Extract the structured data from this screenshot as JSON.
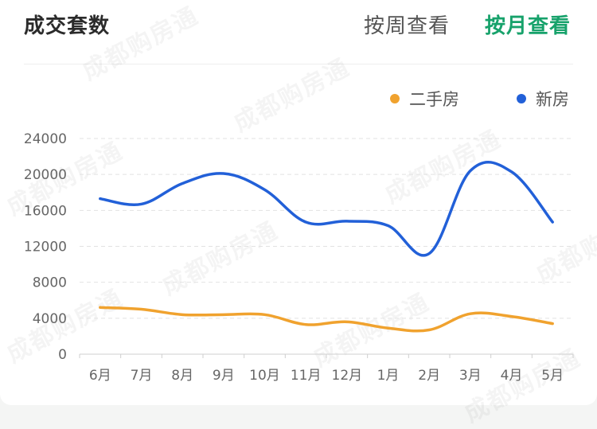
{
  "header": {
    "title": "成交套数",
    "toggle_week": "按周查看",
    "toggle_month": "按月查看",
    "active_color": "#17a26b"
  },
  "watermark": "成都购房通",
  "chart_data": {
    "type": "line",
    "categories": [
      "6月",
      "7月",
      "8月",
      "9月",
      "10月",
      "11月",
      "12月",
      "1月",
      "2月",
      "3月",
      "4月",
      "5月"
    ],
    "series": [
      {
        "name": "二手房",
        "color": "#f0a22e",
        "values": [
          5200,
          5000,
          4400,
          4400,
          4400,
          3300,
          3600,
          2900,
          2700,
          4500,
          4200,
          3400
        ]
      },
      {
        "name": "新房",
        "color": "#2260d8",
        "values": [
          17300,
          16700,
          19000,
          20100,
          18300,
          14700,
          14800,
          14300,
          11200,
          20400,
          20300,
          14700
        ]
      }
    ],
    "yticks": [
      0,
      4000,
      8000,
      12000,
      16000,
      20000,
      24000
    ],
    "ylim": [
      0,
      24000
    ],
    "grid": true,
    "legend": "top-right"
  }
}
